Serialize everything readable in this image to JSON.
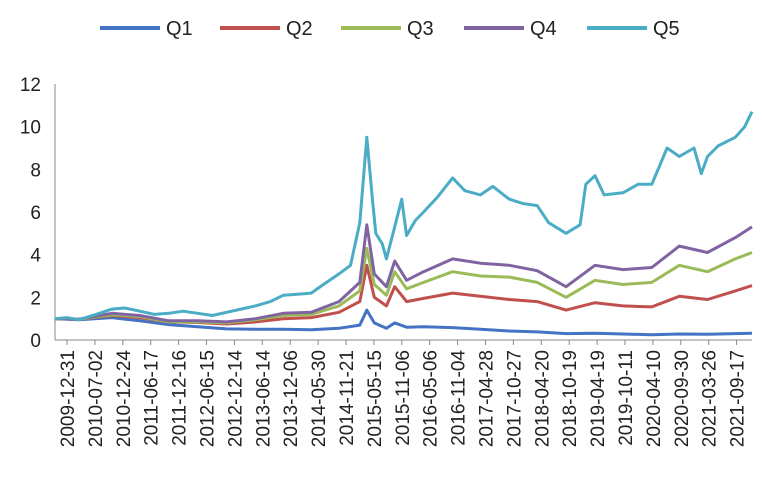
{
  "chart_data": {
    "type": "line",
    "title": "",
    "xlabel": "",
    "ylabel": "",
    "ylim": [
      0,
      12
    ],
    "yticks": [
      0,
      2,
      4,
      6,
      8,
      10,
      12
    ],
    "x_start": "2009-12-31",
    "x_end": "2021-12-31",
    "x_tick_labels": [
      "2009-12-31",
      "2010-07-02",
      "2010-12-24",
      "2011-06-17",
      "2011-12-16",
      "2012-06-15",
      "2012-12-14",
      "2013-06-14",
      "2013-12-06",
      "2014-05-30",
      "2014-11-21",
      "2015-05-15",
      "2015-11-06",
      "2016-05-06",
      "2016-11-04",
      "2017-04-28",
      "2017-10-27",
      "2018-04-20",
      "2018-10-19",
      "2019-04-19",
      "2019-10-11",
      "2020-04-10",
      "2020-09-30",
      "2021-03-26",
      "2021-09-17"
    ],
    "legend_position": "top",
    "grid": false,
    "series": [
      {
        "name": "Q1",
        "color": "#4472C4",
        "points": [
          [
            "2009-12-31",
            1.0
          ],
          [
            "2010-06-01",
            0.95
          ],
          [
            "2010-12-24",
            1.05
          ],
          [
            "2011-06-17",
            0.9
          ],
          [
            "2011-12-16",
            0.72
          ],
          [
            "2012-06-15",
            0.62
          ],
          [
            "2012-12-14",
            0.52
          ],
          [
            "2013-06-14",
            0.5
          ],
          [
            "2013-12-06",
            0.5
          ],
          [
            "2014-05-30",
            0.48
          ],
          [
            "2014-11-21",
            0.55
          ],
          [
            "2015-04-01",
            0.7
          ],
          [
            "2015-05-15",
            1.4
          ],
          [
            "2015-07-01",
            0.8
          ],
          [
            "2015-09-15",
            0.55
          ],
          [
            "2015-11-06",
            0.8
          ],
          [
            "2016-01-20",
            0.6
          ],
          [
            "2016-05-06",
            0.62
          ],
          [
            "2016-11-04",
            0.58
          ],
          [
            "2017-04-28",
            0.5
          ],
          [
            "2017-10-27",
            0.42
          ],
          [
            "2018-04-20",
            0.38
          ],
          [
            "2018-10-19",
            0.3
          ],
          [
            "2019-04-19",
            0.32
          ],
          [
            "2019-10-11",
            0.28
          ],
          [
            "2020-04-10",
            0.25
          ],
          [
            "2020-09-30",
            0.28
          ],
          [
            "2021-03-26",
            0.27
          ],
          [
            "2021-09-17",
            0.3
          ],
          [
            "2021-12-31",
            0.32
          ]
        ]
      },
      {
        "name": "Q2",
        "color": "#C0504D",
        "points": [
          [
            "2009-12-31",
            1.0
          ],
          [
            "2010-06-01",
            0.97
          ],
          [
            "2010-12-24",
            1.15
          ],
          [
            "2011-06-17",
            1.05
          ],
          [
            "2011-12-16",
            0.85
          ],
          [
            "2012-06-15",
            0.82
          ],
          [
            "2012-12-14",
            0.75
          ],
          [
            "2013-06-14",
            0.85
          ],
          [
            "2013-12-06",
            1.0
          ],
          [
            "2014-05-30",
            1.05
          ],
          [
            "2014-11-21",
            1.3
          ],
          [
            "2015-04-01",
            1.8
          ],
          [
            "2015-05-15",
            3.5
          ],
          [
            "2015-07-01",
            2.0
          ],
          [
            "2015-09-15",
            1.6
          ],
          [
            "2015-11-06",
            2.5
          ],
          [
            "2016-01-20",
            1.8
          ],
          [
            "2016-05-06",
            1.95
          ],
          [
            "2016-11-04",
            2.2
          ],
          [
            "2017-04-28",
            2.05
          ],
          [
            "2017-10-27",
            1.9
          ],
          [
            "2018-04-20",
            1.8
          ],
          [
            "2018-10-19",
            1.4
          ],
          [
            "2019-04-19",
            1.75
          ],
          [
            "2019-10-11",
            1.6
          ],
          [
            "2020-04-10",
            1.55
          ],
          [
            "2020-09-30",
            2.05
          ],
          [
            "2021-03-26",
            1.9
          ],
          [
            "2021-09-17",
            2.3
          ],
          [
            "2021-12-31",
            2.55
          ]
        ]
      },
      {
        "name": "Q3",
        "color": "#9BBB59",
        "points": [
          [
            "2009-12-31",
            1.0
          ],
          [
            "2010-06-01",
            0.97
          ],
          [
            "2010-12-24",
            1.18
          ],
          [
            "2011-06-17",
            1.1
          ],
          [
            "2011-12-16",
            0.85
          ],
          [
            "2012-06-15",
            0.85
          ],
          [
            "2012-12-14",
            0.8
          ],
          [
            "2013-06-14",
            0.95
          ],
          [
            "2013-12-06",
            1.15
          ],
          [
            "2014-05-30",
            1.2
          ],
          [
            "2014-11-21",
            1.6
          ],
          [
            "2015-04-01",
            2.3
          ],
          [
            "2015-05-15",
            4.3
          ],
          [
            "2015-07-01",
            2.6
          ],
          [
            "2015-09-15",
            2.1
          ],
          [
            "2015-11-06",
            3.2
          ],
          [
            "2016-01-20",
            2.4
          ],
          [
            "2016-05-06",
            2.7
          ],
          [
            "2016-11-04",
            3.2
          ],
          [
            "2017-04-28",
            3.0
          ],
          [
            "2017-10-27",
            2.95
          ],
          [
            "2018-04-20",
            2.7
          ],
          [
            "2018-10-19",
            2.0
          ],
          [
            "2019-04-19",
            2.8
          ],
          [
            "2019-10-11",
            2.6
          ],
          [
            "2020-04-10",
            2.7
          ],
          [
            "2020-09-30",
            3.5
          ],
          [
            "2021-03-26",
            3.2
          ],
          [
            "2021-09-17",
            3.8
          ],
          [
            "2021-12-31",
            4.1
          ]
        ]
      },
      {
        "name": "Q4",
        "color": "#8064A2",
        "points": [
          [
            "2009-12-31",
            1.0
          ],
          [
            "2010-06-01",
            0.98
          ],
          [
            "2010-12-24",
            1.25
          ],
          [
            "2011-06-17",
            1.15
          ],
          [
            "2011-12-16",
            0.9
          ],
          [
            "2012-06-15",
            0.9
          ],
          [
            "2012-12-14",
            0.85
          ],
          [
            "2013-06-14",
            1.0
          ],
          [
            "2013-12-06",
            1.25
          ],
          [
            "2014-05-30",
            1.3
          ],
          [
            "2014-11-21",
            1.8
          ],
          [
            "2015-04-01",
            2.7
          ],
          [
            "2015-05-15",
            5.4
          ],
          [
            "2015-07-01",
            3.1
          ],
          [
            "2015-09-15",
            2.5
          ],
          [
            "2015-11-06",
            3.7
          ],
          [
            "2016-01-20",
            2.8
          ],
          [
            "2016-05-06",
            3.2
          ],
          [
            "2016-11-04",
            3.8
          ],
          [
            "2017-04-28",
            3.6
          ],
          [
            "2017-10-27",
            3.5
          ],
          [
            "2018-04-20",
            3.25
          ],
          [
            "2018-10-19",
            2.5
          ],
          [
            "2019-04-19",
            3.5
          ],
          [
            "2019-10-11",
            3.3
          ],
          [
            "2020-04-10",
            3.4
          ],
          [
            "2020-09-30",
            4.4
          ],
          [
            "2021-03-26",
            4.1
          ],
          [
            "2021-09-17",
            4.8
          ],
          [
            "2021-12-31",
            5.3
          ]
        ]
      },
      {
        "name": "Q5",
        "color": "#4BACC6",
        "points": [
          [
            "2009-12-31",
            1.0
          ],
          [
            "2010-03-15",
            1.05
          ],
          [
            "2010-06-01",
            0.95
          ],
          [
            "2010-09-15",
            1.2
          ],
          [
            "2010-12-24",
            1.45
          ],
          [
            "2011-03-15",
            1.5
          ],
          [
            "2011-06-17",
            1.35
          ],
          [
            "2011-09-15",
            1.2
          ],
          [
            "2011-12-16",
            1.25
          ],
          [
            "2012-03-15",
            1.35
          ],
          [
            "2012-06-15",
            1.25
          ],
          [
            "2012-09-15",
            1.15
          ],
          [
            "2012-12-14",
            1.3
          ],
          [
            "2013-03-15",
            1.45
          ],
          [
            "2013-06-14",
            1.6
          ],
          [
            "2013-09-15",
            1.8
          ],
          [
            "2013-12-06",
            2.1
          ],
          [
            "2014-03-15",
            2.15
          ],
          [
            "2014-05-30",
            2.2
          ],
          [
            "2014-08-15",
            2.6
          ],
          [
            "2014-11-21",
            3.1
          ],
          [
            "2015-02-01",
            3.5
          ],
          [
            "2015-04-01",
            5.5
          ],
          [
            "2015-05-15",
            9.5
          ],
          [
            "2015-06-20",
            6.5
          ],
          [
            "2015-07-10",
            5.0
          ],
          [
            "2015-08-20",
            4.5
          ],
          [
            "2015-09-15",
            3.8
          ],
          [
            "2015-11-06",
            5.3
          ],
          [
            "2015-12-20",
            6.6
          ],
          [
            "2016-01-20",
            4.9
          ],
          [
            "2016-03-15",
            5.6
          ],
          [
            "2016-05-06",
            6.0
          ],
          [
            "2016-08-01",
            6.7
          ],
          [
            "2016-11-04",
            7.6
          ],
          [
            "2017-01-20",
            7.0
          ],
          [
            "2017-04-28",
            6.8
          ],
          [
            "2017-07-15",
            7.2
          ],
          [
            "2017-10-27",
            6.6
          ],
          [
            "2018-01-20",
            6.4
          ],
          [
            "2018-04-20",
            6.3
          ],
          [
            "2018-07-01",
            5.5
          ],
          [
            "2018-10-19",
            5.0
          ],
          [
            "2019-01-15",
            5.4
          ],
          [
            "2019-02-20",
            7.3
          ],
          [
            "2019-04-19",
            7.7
          ],
          [
            "2019-06-15",
            6.8
          ],
          [
            "2019-10-11",
            6.9
          ],
          [
            "2020-01-15",
            7.3
          ],
          [
            "2020-04-10",
            7.3
          ],
          [
            "2020-07-15",
            9.0
          ],
          [
            "2020-09-30",
            8.6
          ],
          [
            "2020-12-31",
            9.0
          ],
          [
            "2021-02-15",
            7.8
          ],
          [
            "2021-03-26",
            8.6
          ],
          [
            "2021-06-01",
            9.1
          ],
          [
            "2021-09-17",
            9.5
          ],
          [
            "2021-11-15",
            10.0
          ],
          [
            "2021-12-31",
            10.7
          ]
        ]
      }
    ]
  }
}
